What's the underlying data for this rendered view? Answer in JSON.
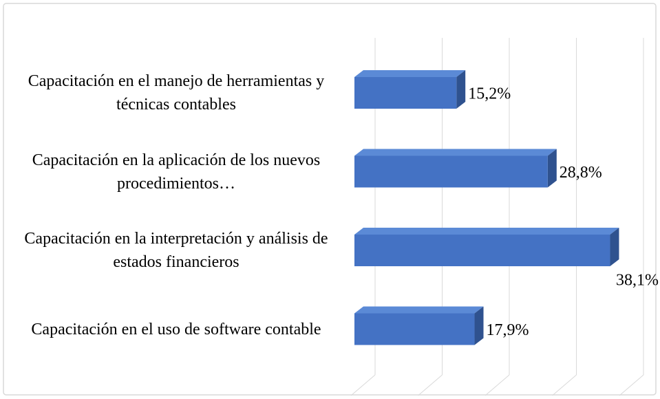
{
  "chart_data": {
    "type": "bar3d_horizontal",
    "categories": [
      "Capacitación en el manejo de herramientas y técnicas contables",
      "Capacitación en la aplicación de los nuevos procedimientos…",
      "Capacitación en la interpretación y análisis de estados financieros",
      "Capacitación en el uso de software contable"
    ],
    "values": [
      15.2,
      28.8,
      38.1,
      17.9
    ],
    "value_labels": [
      "15,2%",
      "28,8%",
      "38,1%",
      "17,9%"
    ],
    "color": "#4472c4",
    "xlim": [
      0,
      40
    ],
    "xticks": [
      0,
      10,
      20,
      30,
      40
    ],
    "grid": true
  }
}
